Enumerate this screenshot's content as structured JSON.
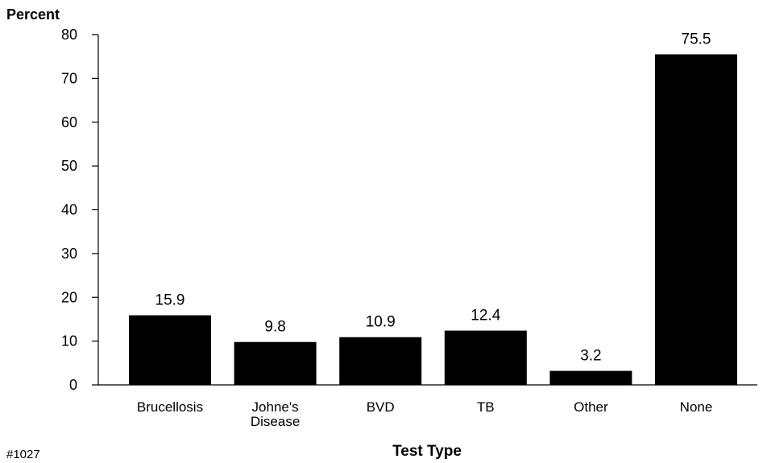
{
  "chart_data": {
    "type": "bar",
    "ylabel": "Percent",
    "xlabel": "Test Type",
    "figure_id": "#1027",
    "categories": [
      [
        "Brucellosis"
      ],
      [
        "Johne's",
        "Disease"
      ],
      [
        "BVD"
      ],
      [
        "TB"
      ],
      [
        "Other"
      ],
      [
        "None"
      ]
    ],
    "values": [
      15.9,
      9.8,
      10.9,
      12.4,
      3.2,
      75.5
    ],
    "value_labels": [
      "15.9",
      "9.8",
      "10.9",
      "12.4",
      "3.2",
      "75.5"
    ],
    "ylim": [
      0,
      80
    ],
    "yticks": [
      0,
      10,
      20,
      30,
      40,
      50,
      60,
      70,
      80
    ],
    "bar_color": "#000000",
    "grid": false
  }
}
